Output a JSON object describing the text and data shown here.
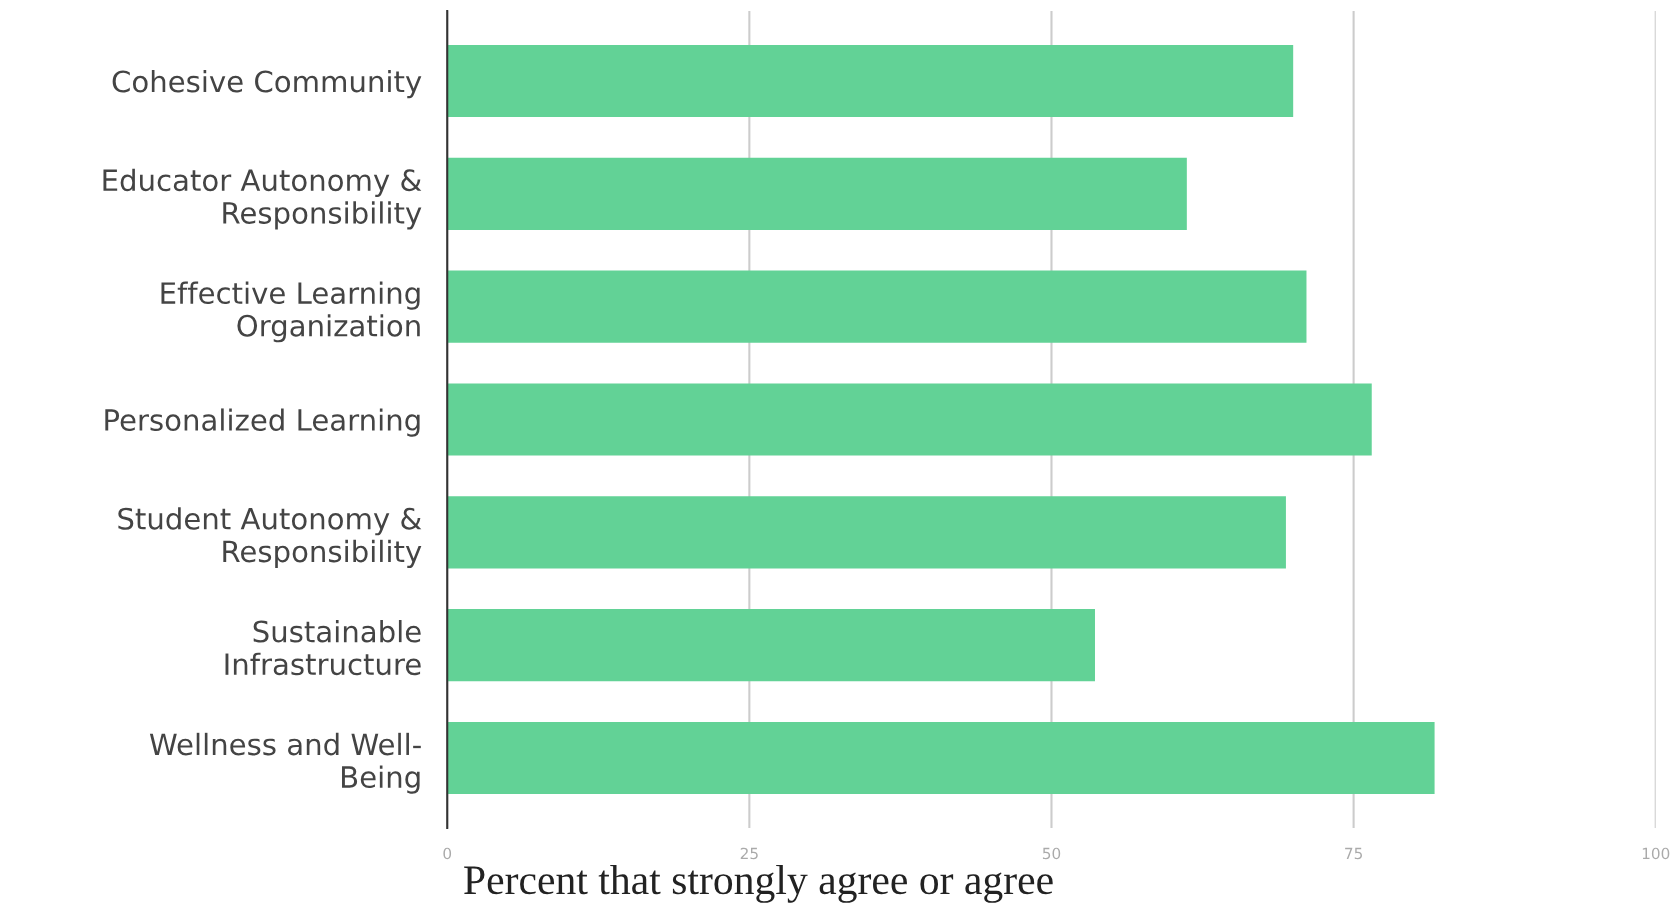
{
  "chart_data": {
    "type": "bar",
    "orientation": "horizontal",
    "xlabel": "Percent that strongly agree or agree",
    "categories": [
      "Cohesive Community",
      "Educator Autonomy &\nResponsibility",
      "Effective Learning\nOrganization",
      "Personalized Learning",
      "Student Autonomy &\nResponsibility",
      "Sustainable\nInfrastructure",
      "Wellness and Well-\nBeing"
    ],
    "values": [
      70.0,
      61.2,
      71.1,
      76.5,
      69.4,
      53.6,
      81.7
    ],
    "color": "#62d296",
    "xlim": [
      0,
      100
    ],
    "xticks": [
      0,
      25,
      50,
      75,
      100
    ],
    "grid": "x"
  }
}
